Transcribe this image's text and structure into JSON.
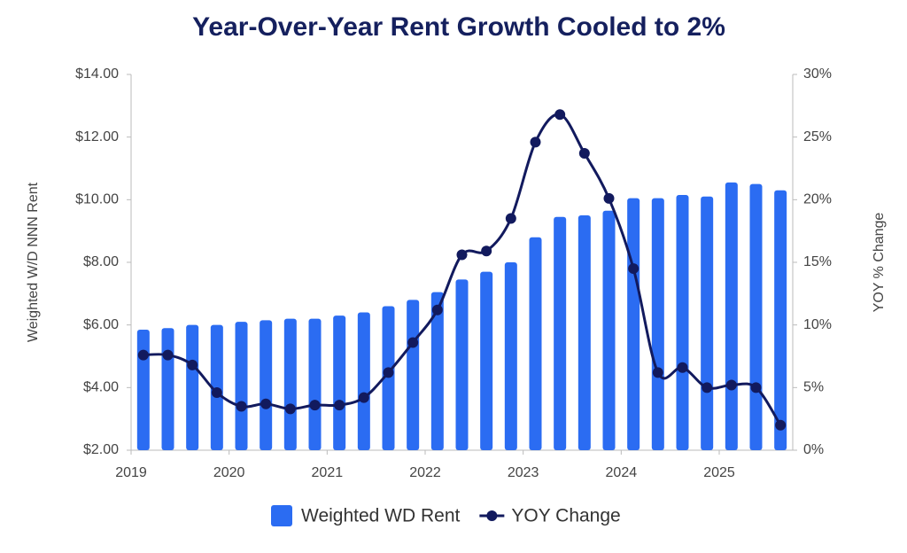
{
  "chart_data": {
    "type": "combo",
    "title": "Year-Over-Year Rent Growth Cooled to 2%",
    "y_label": "Weighted W/D NNN Rent",
    "y2_label": "YOY % Change",
    "x": [
      2019.125,
      2019.375,
      2019.625,
      2019.875,
      2020.125,
      2020.375,
      2020.625,
      2020.875,
      2021.125,
      2021.375,
      2021.625,
      2021.875,
      2022.125,
      2022.375,
      2022.625,
      2022.875,
      2023.125,
      2023.375,
      2023.625,
      2023.875,
      2024.125,
      2024.375,
      2024.625,
      2024.875,
      2025.125,
      2025.375,
      2025.625
    ],
    "xlim": [
      2019,
      2025.75
    ],
    "xticks": [
      2019,
      2020,
      2021,
      2022,
      2023,
      2024,
      2025
    ],
    "ylim": [
      2,
      14
    ],
    "yticks": [
      {
        "value": 2,
        "label": "$2.00"
      },
      {
        "value": 4,
        "label": "$4.00"
      },
      {
        "value": 6,
        "label": "$6.00"
      },
      {
        "value": 8,
        "label": "$8.00"
      },
      {
        "value": 10,
        "label": "$10.00"
      },
      {
        "value": 12,
        "label": "$12.00"
      },
      {
        "value": 14,
        "label": "$14.00"
      }
    ],
    "y2lim": [
      0,
      30
    ],
    "y2ticks": [
      {
        "value": 0,
        "label": "0%"
      },
      {
        "value": 5,
        "label": "5%"
      },
      {
        "value": 10,
        "label": "10%"
      },
      {
        "value": 15,
        "label": "15%"
      },
      {
        "value": 20,
        "label": "20%"
      },
      {
        "value": 25,
        "label": "25%"
      },
      {
        "value": 30,
        "label": "30%"
      }
    ],
    "series": [
      {
        "name": "Weighted WD Rent",
        "type": "bar",
        "color": "#2b6cf2",
        "values": [
          5.85,
          5.9,
          6.0,
          6.0,
          6.1,
          6.15,
          6.2,
          6.2,
          6.3,
          6.4,
          6.6,
          6.8,
          7.05,
          7.45,
          7.7,
          8.0,
          8.8,
          9.45,
          9.5,
          9.65,
          10.05,
          10.05,
          10.15,
          10.1,
          10.55,
          10.5,
          10.3
        ]
      },
      {
        "name": "YOY Change",
        "type": "line",
        "axis": "y2",
        "color": "#121a5e",
        "values": [
          7.6,
          7.6,
          6.8,
          4.6,
          3.5,
          3.7,
          3.3,
          3.6,
          3.6,
          4.2,
          6.2,
          8.6,
          11.2,
          15.6,
          15.9,
          18.5,
          24.6,
          26.8,
          23.7,
          20.1,
          14.5,
          6.2,
          6.6,
          5.0,
          5.2,
          5.0,
          2.0
        ]
      }
    ]
  }
}
